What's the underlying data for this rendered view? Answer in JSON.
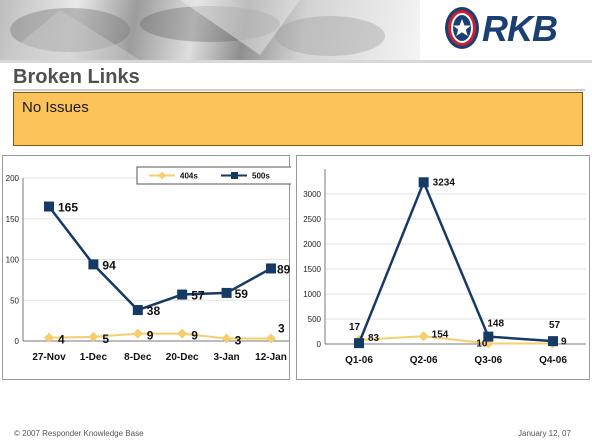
{
  "header": {
    "logo_text": "RKB",
    "page_title": "Broken Links",
    "status_text": "No Issues"
  },
  "footer": {
    "copyright": "© 2007 Responder Knowledge Base",
    "date": "January 12, 07"
  },
  "colors": {
    "series_404": "#f7cd6e",
    "series_500": "#163a66",
    "status_box": "#fbc359",
    "brand": "#1b3f73"
  },
  "chart_data": [
    {
      "type": "line",
      "title": "",
      "xlabel": "",
      "ylabel": "",
      "categories": [
        "27-Nov",
        "1-Dec",
        "8-Dec",
        "20-Dec",
        "3-Jan",
        "12-Jan"
      ],
      "ylim": [
        0,
        200
      ],
      "yticks": [
        0,
        50,
        100,
        150,
        200
      ],
      "legend": "top",
      "grid": true,
      "series": [
        {
          "name": "404s",
          "values": [
            4,
            5,
            9,
            9,
            3,
            3
          ],
          "color": "#f7cd6e",
          "marker": "diamond"
        },
        {
          "name": "500s",
          "values": [
            165,
            94,
            38,
            57,
            59,
            89
          ],
          "color": "#163a66",
          "marker": "square"
        }
      ]
    },
    {
      "type": "line",
      "title": "",
      "xlabel": "",
      "ylabel": "",
      "categories": [
        "Q1-06",
        "Q2-06",
        "Q3-06",
        "Q4-06"
      ],
      "ylim": [
        0,
        3500
      ],
      "yticks": [
        0,
        500,
        1000,
        1500,
        2000,
        2500,
        3000
      ],
      "legend": "none",
      "grid": true,
      "series": [
        {
          "values": [
            83,
            154,
            10,
            9
          ],
          "color": "#f7cd6e",
          "marker": "diamond"
        },
        {
          "values": [
            17,
            3234,
            148,
            57
          ],
          "color": "#163a66",
          "marker": "square"
        }
      ]
    }
  ]
}
